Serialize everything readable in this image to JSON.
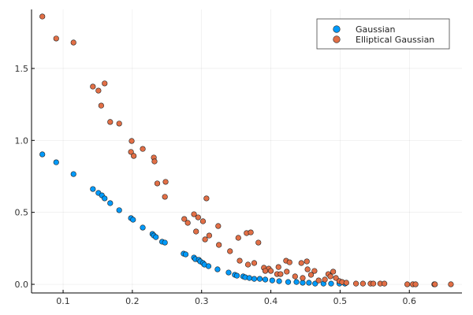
{
  "chart_data": {
    "type": "scatter",
    "title": "",
    "xlabel": "",
    "ylabel": "",
    "xlim": [
      0.0544,
      0.676
    ],
    "ylim": [
      -0.06,
      1.91
    ],
    "xticks": [
      0.1,
      0.2,
      0.3,
      0.4,
      0.5,
      0.6
    ],
    "xtick_labels": [
      "0.1",
      "0.2",
      "0.3",
      "0.4",
      "0.5",
      "0.6"
    ],
    "yticks": [
      0.0,
      0.5,
      1.0,
      1.5
    ],
    "ytick_labels": [
      "0.0",
      "0.5",
      "1.0",
      "1.5"
    ],
    "grid": true,
    "legend_position": "top-right",
    "series": [
      {
        "name": "Gaussian",
        "color": "#009AFA",
        "x": [
          0.07,
          0.09,
          0.115,
          0.143,
          0.151,
          0.156,
          0.16,
          0.168,
          0.181,
          0.198,
          0.201,
          0.215,
          0.229,
          0.231,
          0.234,
          0.243,
          0.247,
          0.274,
          0.277,
          0.289,
          0.291,
          0.296,
          0.298,
          0.302,
          0.304,
          0.31,
          0.323,
          0.339,
          0.348,
          0.351,
          0.36,
          0.363,
          0.369,
          0.376,
          0.384,
          0.392,
          0.402,
          0.412,
          0.425,
          0.437,
          0.446,
          0.455,
          0.464,
          0.476,
          0.487,
          0.499,
          0.507
        ],
        "y": [
          0.903,
          0.848,
          0.766,
          0.662,
          0.635,
          0.618,
          0.597,
          0.564,
          0.515,
          0.46,
          0.449,
          0.394,
          0.35,
          0.339,
          0.328,
          0.296,
          0.29,
          0.213,
          0.208,
          0.186,
          0.175,
          0.17,
          0.159,
          0.148,
          0.137,
          0.126,
          0.104,
          0.082,
          0.066,
          0.06,
          0.055,
          0.049,
          0.044,
          0.038,
          0.038,
          0.033,
          0.027,
          0.022,
          0.016,
          0.016,
          0.011,
          0.011,
          0.005,
          0.005,
          0.005,
          0.005,
          0.005
        ]
      },
      {
        "name": "Elliptical Gaussian",
        "color": "#E26F46",
        "x": [
          0.07,
          0.09,
          0.115,
          0.143,
          0.151,
          0.16,
          0.155,
          0.168,
          0.181,
          0.199,
          0.198,
          0.202,
          0.215,
          0.231,
          0.232,
          0.236,
          0.248,
          0.247,
          0.275,
          0.28,
          0.289,
          0.295,
          0.292,
          0.302,
          0.307,
          0.305,
          0.311,
          0.324,
          0.325,
          0.341,
          0.353,
          0.365,
          0.371,
          0.382,
          0.355,
          0.367,
          0.376,
          0.39,
          0.397,
          0.4,
          0.392,
          0.411,
          0.409,
          0.414,
          0.422,
          0.427,
          0.423,
          0.435,
          0.444,
          0.452,
          0.453,
          0.463,
          0.458,
          0.446,
          0.469,
          0.478,
          0.483,
          0.49,
          0.486,
          0.494,
          0.499,
          0.503,
          0.509,
          0.523,
          0.533,
          0.544,
          0.548,
          0.558,
          0.564,
          0.597,
          0.605,
          0.609,
          0.636,
          0.637,
          0.66
        ],
        "y": [
          1.861,
          1.708,
          1.68,
          1.374,
          1.346,
          1.396,
          1.242,
          1.128,
          1.117,
          0.996,
          0.92,
          0.892,
          0.941,
          0.881,
          0.854,
          0.701,
          0.712,
          0.608,
          0.454,
          0.427,
          0.487,
          0.465,
          0.367,
          0.438,
          0.597,
          0.312,
          0.339,
          0.405,
          0.274,
          0.23,
          0.323,
          0.356,
          0.361,
          0.29,
          0.164,
          0.137,
          0.148,
          0.115,
          0.109,
          0.093,
          0.093,
          0.12,
          0.071,
          0.071,
          0.164,
          0.153,
          0.088,
          0.055,
          0.148,
          0.159,
          0.104,
          0.093,
          0.066,
          0.044,
          0.027,
          0.033,
          0.071,
          0.088,
          0.055,
          0.044,
          0.022,
          0.016,
          0.011,
          0.005,
          0.005,
          0.005,
          0.005,
          0.005,
          0.005,
          0.0,
          0.0,
          0.0,
          0.0,
          0.0,
          0.0
        ]
      }
    ]
  }
}
